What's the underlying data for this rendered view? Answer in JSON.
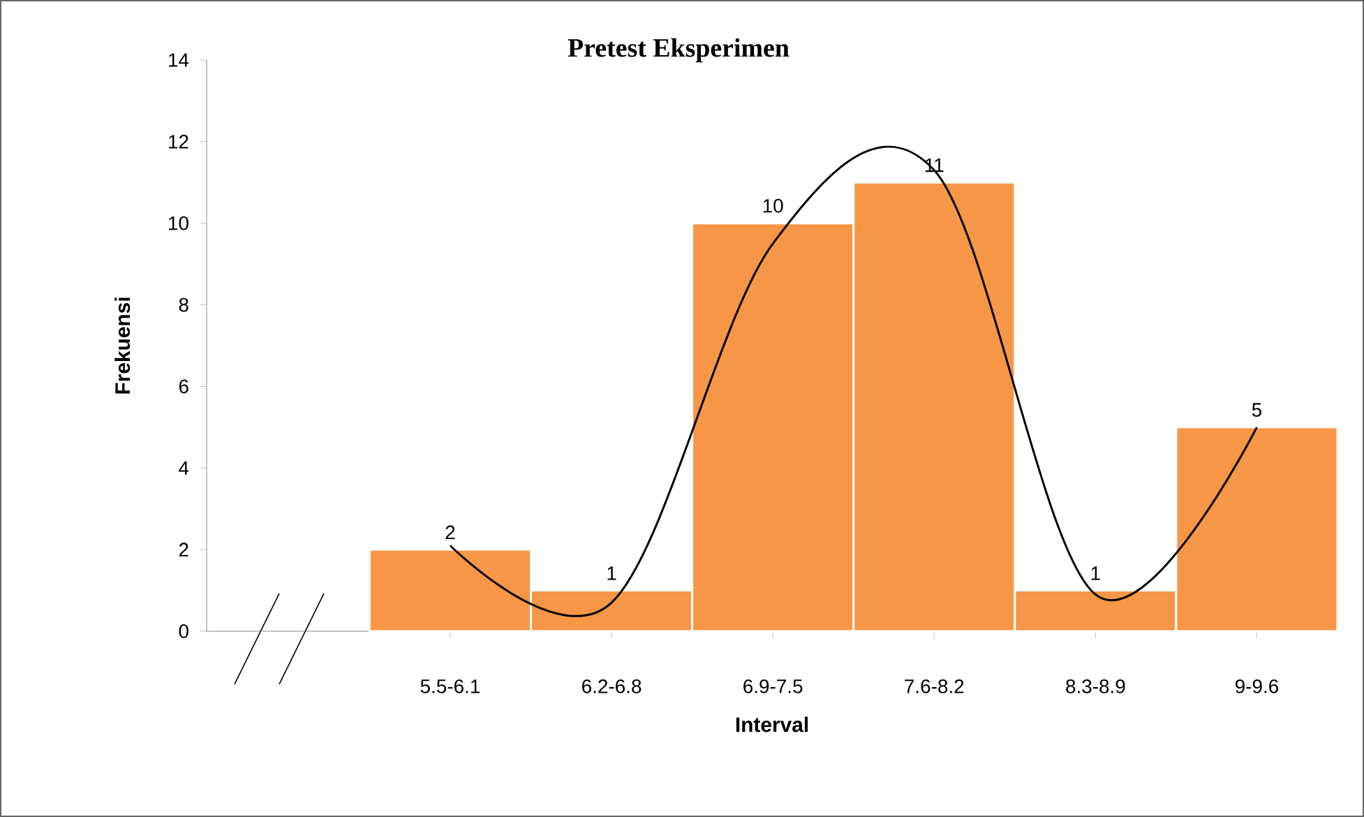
{
  "chart_data": {
    "type": "bar",
    "title": "Pretest Eksperimen",
    "xlabel": "Interval",
    "ylabel": "Frekuensi",
    "categories": [
      "5.5-6.1",
      "6.2-6.8",
      "6.9-7.5",
      "7.6-8.2",
      "8.3-8.9",
      "9-9.6"
    ],
    "series": [
      {
        "color": "#f79646",
        "values": [
          2,
          1,
          10,
          11,
          1,
          5
        ],
        "value_labels": [
          "2",
          "1",
          "10",
          "11",
          "1",
          "5"
        ]
      },
      {
        "type": "line",
        "color": "#000000",
        "values": [
          2.1,
          0.7,
          9.5,
          11.3,
          0.9,
          5
        ]
      }
    ],
    "ylim": [
      0,
      14
    ],
    "yticks": [
      0,
      2,
      4,
      6,
      8,
      10,
      12,
      14
    ],
    "grid": false,
    "marker": "none",
    "line_style": "solid"
  }
}
